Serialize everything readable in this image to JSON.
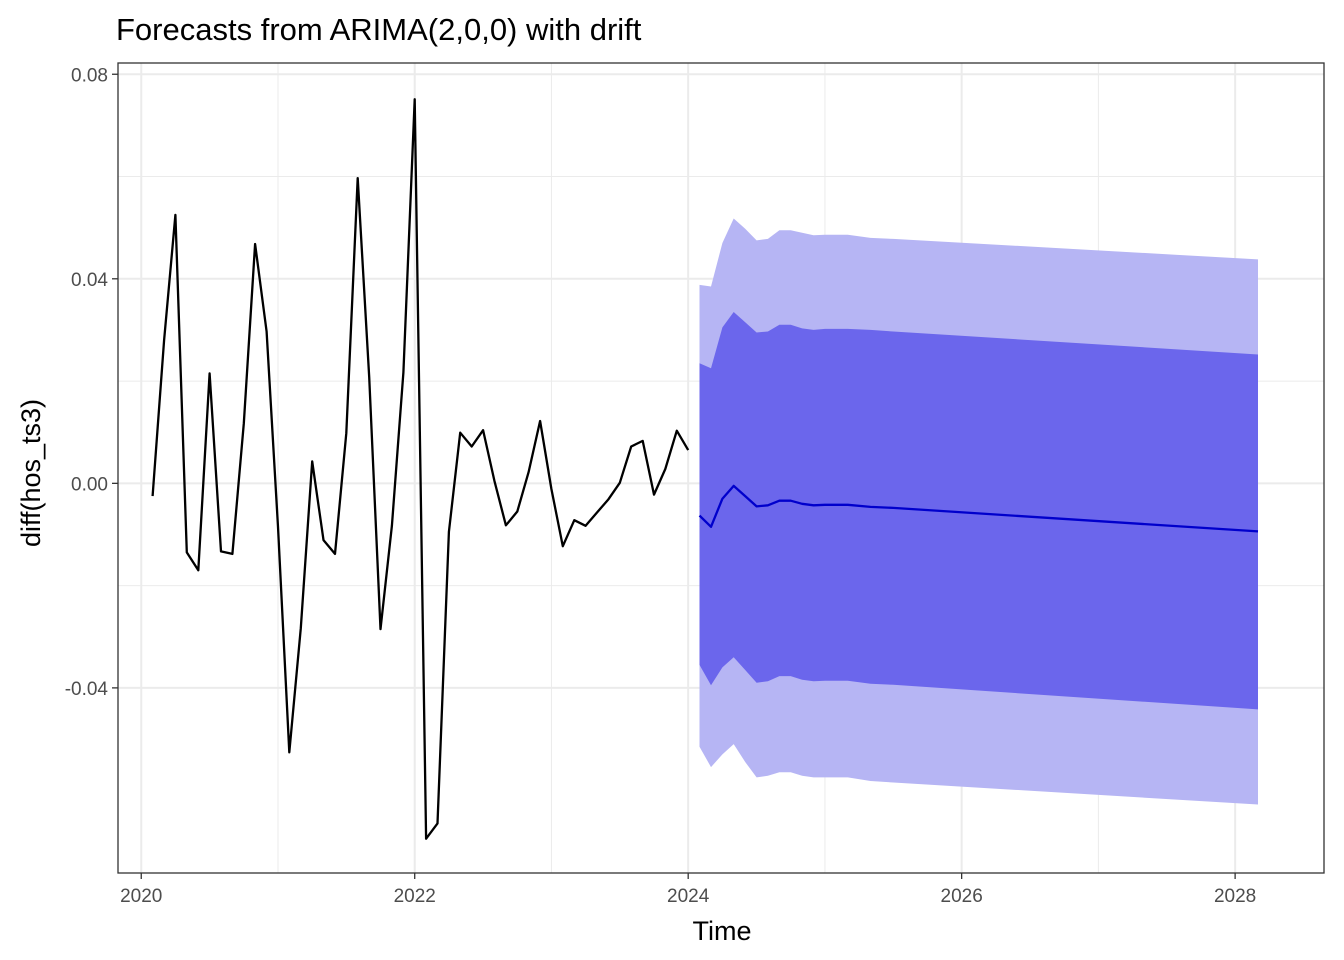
{
  "chart_data": {
    "type": "line",
    "title": "Forecasts from ARIMA(2,0,0) with drift",
    "xlabel": "Time",
    "ylabel": "diff(hos_ts3)",
    "xlim": [
      2019.83,
      2028.65
    ],
    "ylim": [
      -0.0762,
      0.0822
    ],
    "x_ticks": [
      2020,
      2022,
      2024,
      2026,
      2028
    ],
    "x_tick_labels": [
      "2020",
      "2022",
      "2024",
      "2026",
      "2028"
    ],
    "y_ticks": [
      -0.04,
      0.0,
      0.04,
      0.08
    ],
    "y_tick_labels": [
      "-0.04",
      "0.00",
      "0.04",
      "0.08"
    ],
    "grid": true,
    "legend": "none",
    "colors": {
      "history": "#000000",
      "forecast": "#0000cc",
      "band_80": "#6b66ec",
      "band_95": "#b6b5f4",
      "grid": "#ebebeb",
      "panel_border": "#333333"
    },
    "series": [
      {
        "role": "history",
        "x": [
          2020.083,
          2020.167,
          2020.25,
          2020.333,
          2020.417,
          2020.5,
          2020.583,
          2020.667,
          2020.75,
          2020.833,
          2020.917,
          2021.0,
          2021.083,
          2021.167,
          2021.25,
          2021.333,
          2021.417,
          2021.5,
          2021.583,
          2021.667,
          2021.75,
          2021.833,
          2021.917,
          2022.0,
          2022.083,
          2022.167,
          2022.25,
          2022.333,
          2022.417,
          2022.5,
          2022.583,
          2022.667,
          2022.75,
          2022.833,
          2022.917,
          2023.0,
          2023.083,
          2023.167,
          2023.25,
          2023.333,
          2023.417,
          2023.5,
          2023.583,
          2023.667,
          2023.75,
          2023.833,
          2023.917,
          2024.0
        ],
        "values": [
          -0.0025,
          0.028,
          0.0525,
          -0.0135,
          -0.017,
          0.0215,
          -0.0133,
          -0.0138,
          0.0117,
          0.0468,
          0.0297,
          -0.0085,
          -0.0526,
          -0.0283,
          0.0043,
          -0.0111,
          -0.0138,
          0.0098,
          0.0597,
          0.0208,
          -0.0285,
          -0.0083,
          0.0217,
          0.0751,
          -0.0695,
          -0.0665,
          -0.0095,
          0.0099,
          0.0072,
          0.0104,
          0.0005,
          -0.0082,
          -0.0055,
          0.0022,
          0.0122,
          -0.0011,
          -0.0123,
          -0.0072,
          -0.0083,
          -0.0057,
          -0.0031,
          0.0001,
          0.0072,
          0.0083,
          -0.0022,
          0.0028,
          0.0103,
          0.0065
        ]
      },
      {
        "role": "forecast",
        "x": [
          2024.083,
          2024.167,
          2024.25,
          2024.333,
          2024.417,
          2024.5,
          2024.583,
          2024.667,
          2024.75,
          2024.833,
          2024.917,
          2025.0,
          2025.167,
          2025.333,
          2025.5,
          2028.167
        ],
        "values": [
          -0.0063,
          -0.0085,
          -0.003,
          -0.0005,
          -0.0025,
          -0.0045,
          -0.0043,
          -0.0034,
          -0.0034,
          -0.004,
          -0.0043,
          -0.0042,
          -0.0042,
          -0.0046,
          -0.0048,
          -0.0094
        ],
        "lower80": [
          -0.0355,
          -0.0395,
          -0.036,
          -0.034,
          -0.0365,
          -0.039,
          -0.0387,
          -0.0377,
          -0.0377,
          -0.0384,
          -0.0387,
          -0.0386,
          -0.0386,
          -0.0392,
          -0.0394,
          -0.0442
        ],
        "upper80": [
          0.0235,
          0.0225,
          0.0305,
          0.0335,
          0.0315,
          0.0295,
          0.0297,
          0.031,
          0.031,
          0.0303,
          0.03,
          0.0302,
          0.0302,
          0.03,
          0.0297,
          0.0252
        ],
        "lower95": [
          -0.0515,
          -0.0555,
          -0.053,
          -0.051,
          -0.0545,
          -0.0575,
          -0.0572,
          -0.0565,
          -0.0565,
          -0.0572,
          -0.0575,
          -0.0575,
          -0.0575,
          -0.0582,
          -0.0585,
          -0.0628
        ],
        "upper95": [
          0.0388,
          0.0385,
          0.047,
          0.0518,
          0.0498,
          0.0475,
          0.0478,
          0.0495,
          0.0495,
          0.049,
          0.0485,
          0.0486,
          0.0486,
          0.048,
          0.0478,
          0.0438
        ]
      }
    ]
  }
}
